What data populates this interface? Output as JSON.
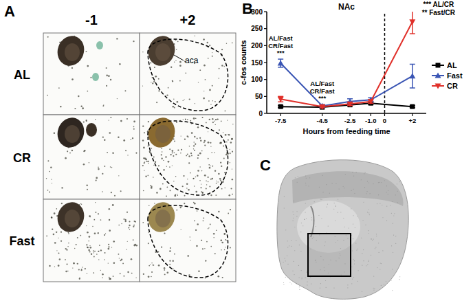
{
  "figure": {
    "panel_labels": [
      "A",
      "B",
      "C"
    ],
    "columns": [
      "-1",
      "+2"
    ],
    "rows": [
      "AL",
      "CR",
      "Fast"
    ],
    "annotation": "aca"
  },
  "chart_data": {
    "type": "line",
    "title": "NAc",
    "x_label": "Hours from feeding time",
    "y_label": "c-fos counts",
    "x": [
      -7.5,
      -4.5,
      -2.5,
      -1,
      2
    ],
    "xlim": [
      -8.5,
      3
    ],
    "xticks": [
      -7.5,
      -4.5,
      -2.5,
      {
        "value": -1,
        "label": "-1.0"
      },
      0,
      {
        "value": 2,
        "label": "+2"
      }
    ],
    "ylim": [
      0,
      300
    ],
    "yticks": [
      0,
      50,
      100,
      150,
      200,
      250,
      300
    ],
    "vlines": [
      0
    ],
    "series": [
      {
        "name": "AL",
        "color": "#000000",
        "marker": "square",
        "values": [
          20,
          18,
          25,
          30,
          20
        ],
        "errors": [
          3,
          2,
          3,
          4,
          3
        ]
      },
      {
        "name": "Fast",
        "color": "#3a55b4",
        "marker": "triangle",
        "values": [
          148,
          22,
          35,
          40,
          110
        ],
        "errors": [
          12,
          4,
          8,
          6,
          35
        ]
      },
      {
        "name": "CR",
        "color": "#e0302a",
        "marker": "triangle-down",
        "values": [
          42,
          20,
          28,
          35,
          270
        ],
        "errors": [
          8,
          4,
          5,
          5,
          35
        ]
      }
    ],
    "legend": "right",
    "annotations": [
      [
        "AL/Fast",
        "CR/Fast",
        "***"
      ],
      [
        "AL/Fast",
        "CR/Fast",
        "***"
      ],
      [
        "*** AL/CR",
        "** Fast/CR"
      ]
    ]
  }
}
